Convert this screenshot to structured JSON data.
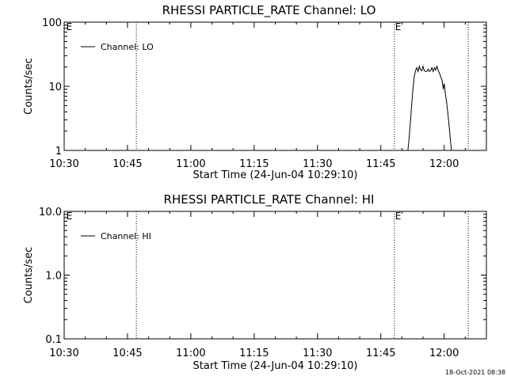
{
  "footer": {
    "timestamp": "18-Oct-2021 08:38"
  },
  "chart_data": [
    {
      "type": "line",
      "title": "RHESSI PARTICLE_RATE Channel: LO",
      "xlabel": "Start Time (24-Jun-04 10:29:10)",
      "ylabel": "Counts/sec",
      "x_unit": "minutes from 10:30",
      "xlim": [
        0,
        100
      ],
      "x_ticks": [
        {
          "v": 0,
          "label": "10:30"
        },
        {
          "v": 15,
          "label": "10:45"
        },
        {
          "v": 30,
          "label": "11:00"
        },
        {
          "v": 45,
          "label": "11:15"
        },
        {
          "v": 60,
          "label": "11:30"
        },
        {
          "v": 75,
          "label": "11:45"
        },
        {
          "v": 90,
          "label": "12:00"
        }
      ],
      "y_scale": "log",
      "ylim": [
        1,
        100
      ],
      "y_ticks": [
        {
          "v": 100,
          "label": "100"
        },
        {
          "v": 10,
          "label": "10"
        },
        {
          "v": 1,
          "label": "1"
        }
      ],
      "legend": "Channel: LO",
      "legend_position": "top-left",
      "markers": [
        {
          "x": 0.3,
          "label": "E",
          "line": false
        },
        {
          "x": 17.1,
          "label": "",
          "line": true
        },
        {
          "x": 78.2,
          "label": "E",
          "line": true
        },
        {
          "x": 95.7,
          "label": "",
          "line": true
        }
      ],
      "series": [
        {
          "name": "Channel: LO",
          "points": [
            [
              81.4,
              1
            ],
            [
              81.7,
              1.6
            ],
            [
              82.0,
              2.8
            ],
            [
              82.3,
              5.2
            ],
            [
              82.6,
              9.2
            ],
            [
              82.9,
              14
            ],
            [
              83.2,
              17.5
            ],
            [
              83.5,
              19.5
            ],
            [
              83.8,
              17
            ],
            [
              84.1,
              20.5
            ],
            [
              84.4,
              18
            ],
            [
              84.7,
              17.5
            ],
            [
              85.0,
              20.5
            ],
            [
              85.3,
              17.5
            ],
            [
              85.6,
              17
            ],
            [
              85.9,
              17
            ],
            [
              86.2,
              18.5
            ],
            [
              86.5,
              17
            ],
            [
              86.8,
              17.5
            ],
            [
              87.1,
              19.5
            ],
            [
              87.4,
              17
            ],
            [
              87.7,
              19.5
            ],
            [
              88.0,
              18
            ],
            [
              88.3,
              20.5
            ],
            [
              88.6,
              17.5
            ],
            [
              88.9,
              16
            ],
            [
              89.2,
              14
            ],
            [
              89.5,
              12.5
            ],
            [
              89.8,
              9
            ],
            [
              90.0,
              11
            ],
            [
              90.3,
              7.5
            ],
            [
              90.6,
              5.5
            ],
            [
              90.9,
              3.6
            ],
            [
              91.2,
              2.3
            ],
            [
              91.5,
              1.4
            ],
            [
              91.7,
              1
            ]
          ]
        }
      ]
    },
    {
      "type": "line",
      "title": "RHESSI PARTICLE_RATE Channel: HI",
      "xlabel": "Start Time (24-Jun-04 10:29:10)",
      "ylabel": "Counts/sec",
      "x_unit": "minutes from 10:30",
      "xlim": [
        0,
        100
      ],
      "x_ticks": [
        {
          "v": 0,
          "label": "10:30"
        },
        {
          "v": 15,
          "label": "10:45"
        },
        {
          "v": 30,
          "label": "11:00"
        },
        {
          "v": 45,
          "label": "11:15"
        },
        {
          "v": 60,
          "label": "11:30"
        },
        {
          "v": 75,
          "label": "11:45"
        },
        {
          "v": 90,
          "label": "12:00"
        }
      ],
      "y_scale": "log",
      "ylim": [
        0.1,
        10
      ],
      "y_ticks": [
        {
          "v": 10,
          "label": "10.0"
        },
        {
          "v": 1,
          "label": "1.0"
        },
        {
          "v": 0.1,
          "label": "0.1"
        }
      ],
      "legend": "Channel: HI",
      "legend_position": "top-left",
      "markers": [
        {
          "x": 0.3,
          "label": "E",
          "line": false
        },
        {
          "x": 17.1,
          "label": "",
          "line": true
        },
        {
          "x": 78.2,
          "label": "E",
          "line": true
        },
        {
          "x": 95.7,
          "label": "",
          "line": true
        }
      ],
      "series": [
        {
          "name": "Channel: HI",
          "points": []
        }
      ]
    }
  ]
}
